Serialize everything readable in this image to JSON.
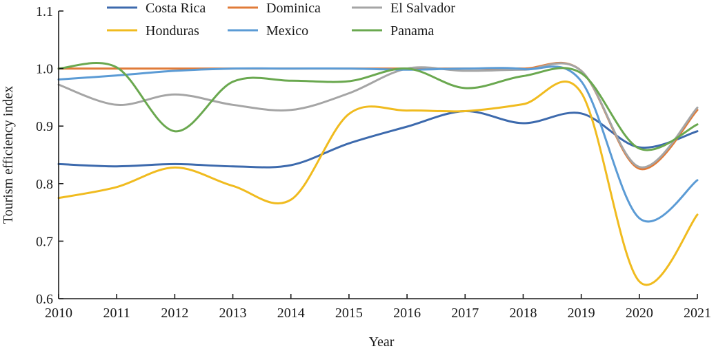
{
  "chart_data": {
    "type": "line",
    "title": "",
    "xlabel": "Year",
    "ylabel": "Tourism efficiency index",
    "x": [
      2010,
      2011,
      2012,
      2013,
      2014,
      2015,
      2016,
      2017,
      2018,
      2019,
      2020,
      2021
    ],
    "xlim": [
      2010,
      2021
    ],
    "ylim": [
      0.6,
      1.1
    ],
    "yticks": [
      "0.6",
      "0.7",
      "0.8",
      "0.9",
      "1.0",
      "1.1"
    ],
    "xticks": [
      "2010",
      "2011",
      "2012",
      "2013",
      "2014",
      "2015",
      "2016",
      "2017",
      "2018",
      "2019",
      "2020",
      "2021"
    ],
    "grid": false,
    "legend_position": "top",
    "smooth": true,
    "series": [
      {
        "name": "Costa Rica",
        "color": "#3d6aad",
        "values": [
          0.834,
          0.83,
          0.834,
          0.83,
          0.832,
          0.87,
          0.899,
          0.926,
          0.905,
          0.922,
          0.863,
          0.891
        ]
      },
      {
        "name": "Dominica",
        "color": "#e07b39",
        "values": [
          1.0,
          1.0,
          1.0,
          1.0,
          1.0,
          1.0,
          1.0,
          1.0,
          1.0,
          0.996,
          0.826,
          0.928
        ]
      },
      {
        "name": "El Salvador",
        "color": "#a5a5a5",
        "values": [
          0.972,
          0.937,
          0.955,
          0.937,
          0.928,
          0.957,
          1.0,
          0.996,
          0.998,
          0.996,
          0.829,
          0.932
        ]
      },
      {
        "name": "Honduras",
        "color": "#f0bb1f",
        "values": [
          0.775,
          0.794,
          0.828,
          0.796,
          0.772,
          0.921,
          0.927,
          0.926,
          0.938,
          0.958,
          0.63,
          0.746
        ]
      },
      {
        "name": "Mexico",
        "color": "#5b9bd5",
        "values": [
          0.981,
          0.988,
          0.996,
          1.0,
          1.0,
          1.0,
          0.998,
          1.0,
          0.999,
          0.978,
          0.74,
          0.806
        ]
      },
      {
        "name": "Panama",
        "color": "#6aa84f",
        "values": [
          1.0,
          1.002,
          0.891,
          0.977,
          0.979,
          0.978,
          1.0,
          0.966,
          0.987,
          0.992,
          0.861,
          0.903
        ]
      }
    ]
  }
}
